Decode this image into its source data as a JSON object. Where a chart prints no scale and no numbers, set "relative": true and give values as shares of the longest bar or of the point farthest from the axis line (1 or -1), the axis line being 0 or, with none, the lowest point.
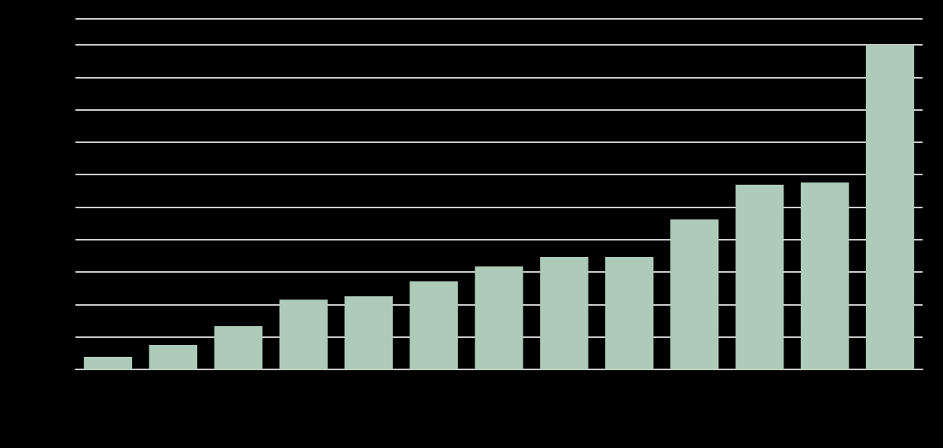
{
  "chart_data": {
    "type": "bar",
    "relative": true,
    "categories": [
      null,
      null,
      null,
      null,
      null,
      null,
      null,
      null,
      null,
      null,
      null,
      null,
      null
    ],
    "values": [
      0.039,
      0.075,
      0.133,
      0.215,
      0.225,
      0.271,
      0.317,
      0.346,
      0.346,
      0.462,
      0.569,
      0.576,
      1
    ],
    "color": "#aecbb9",
    "grid": "y"
  }
}
